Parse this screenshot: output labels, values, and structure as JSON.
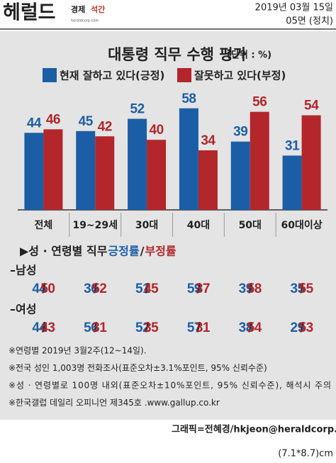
{
  "header": {
    "logo": "헤럴드",
    "edition_a": "경제",
    "edition_b": "석간",
    "site": "heraldcorp.com",
    "date": "2019년 03월 15일",
    "page": "05면 (정치)"
  },
  "chart_data": {
    "type": "bar",
    "title": "대통령 직무 수행 평가",
    "unit": "(단위 : %)",
    "categories": [
      "전체",
      "19~29세",
      "30대",
      "40대",
      "50대",
      "60대이상"
    ],
    "series": [
      {
        "name": "현재 잘하고 있다(긍정)",
        "color": "#1b5ea6",
        "values": [
          44,
          45,
          52,
          58,
          39,
          31
        ]
      },
      {
        "name": "잘못하고 있다(부정)",
        "color": "#b3262b",
        "values": [
          46,
          42,
          40,
          34,
          56,
          54
        ]
      }
    ]
  },
  "gender": {
    "heading": {
      "prefix": "▶성 · 연령별 직무 ",
      "positive": "긍정률",
      "separator": "/",
      "negative": "부정률"
    },
    "rows": [
      {
        "label": "–남성",
        "positive": [
          44,
          36,
          51,
          59,
          39,
          35
        ],
        "negative": [
          50,
          52,
          45,
          37,
          58,
          55
        ]
      },
      {
        "label": "–여성",
        "positive": [
          44,
          56,
          52,
          57,
          38,
          29
        ],
        "negative": [
          43,
          31,
          35,
          31,
          54,
          53
        ]
      }
    ]
  },
  "notes": [
    "※연령별 2019년 3월2주(12~14일).",
    "※전국 성인 1,003명 전화조사(표준오차±3.1%포인트, 95% 신뢰수준)",
    "※성 · 연령별로 100명 내외(표준오차±10%포인트, 95% 신뢰수준), 해석시 주의",
    "※한국갤럽 데일리 오피니언 제345호 .www.gallup.co.kr"
  ],
  "credit": "그래픽=전혜경/hkjeon@heraldcorp.com",
  "size": "(7.1*8.7)cm"
}
